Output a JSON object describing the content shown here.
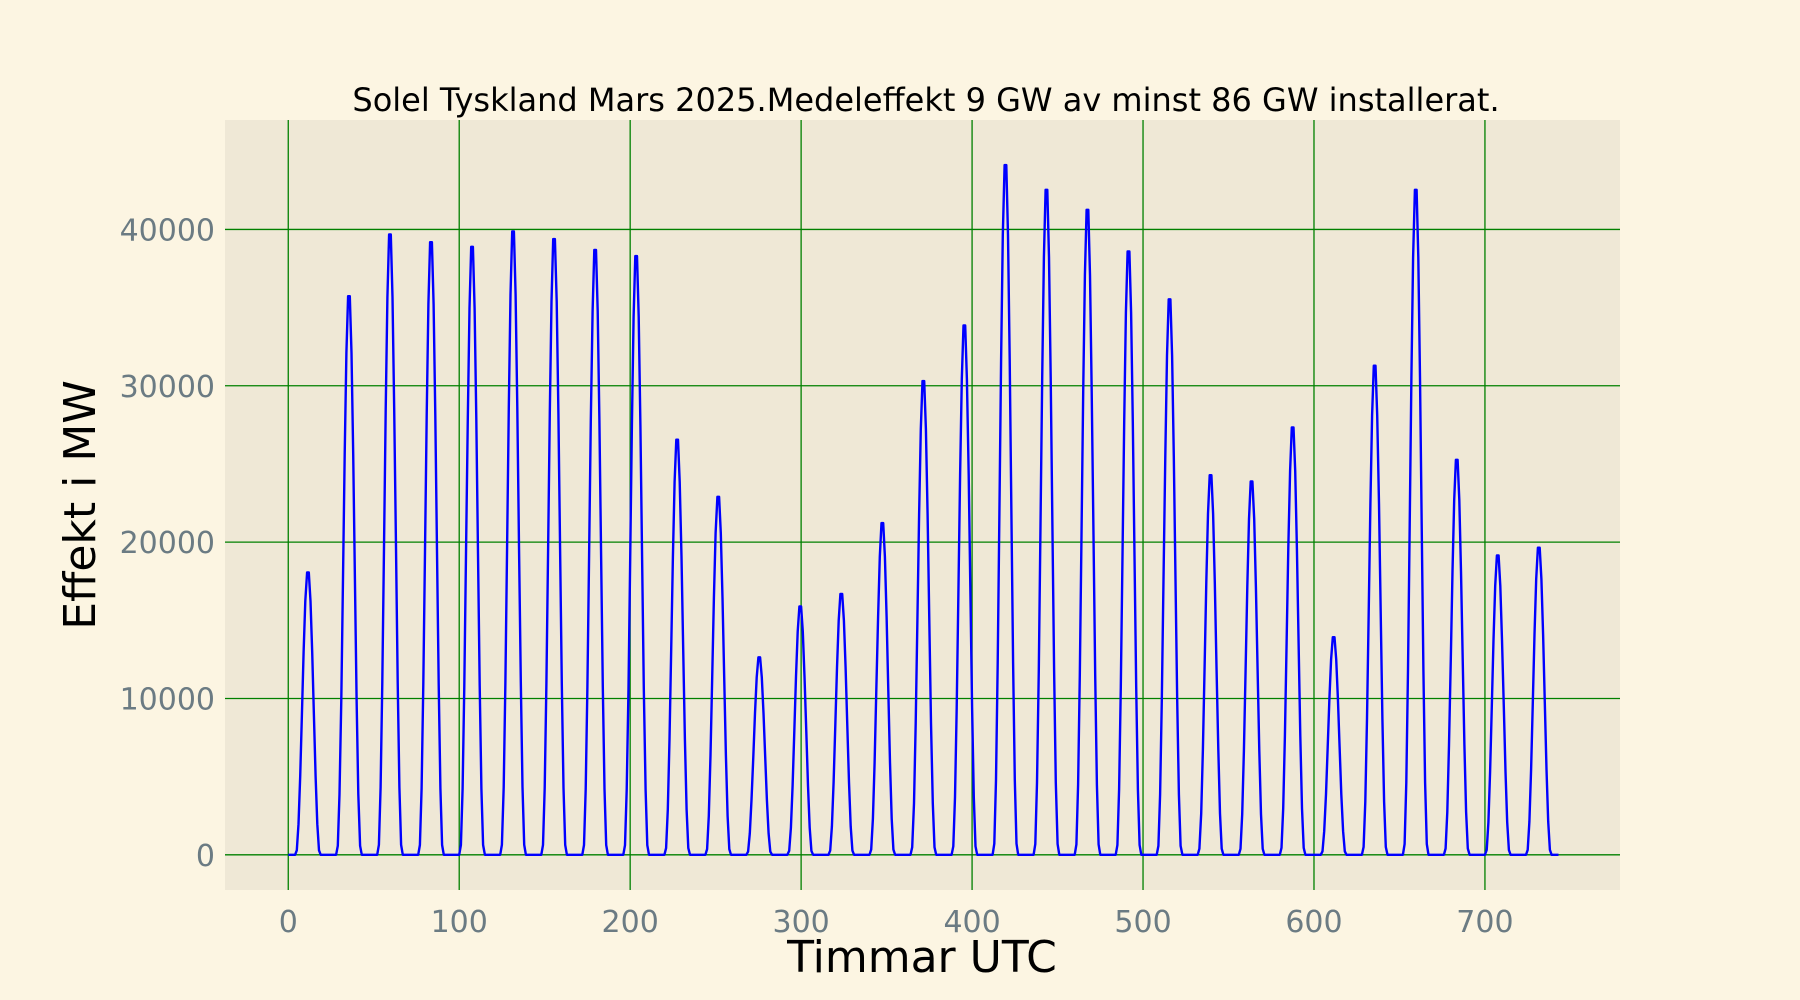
{
  "chart_data": {
    "type": "line",
    "title": "Solel Tyskland Mars 2025.Medeleffekt 9 GW av minst 86 GW installerat.",
    "xlabel": "Timmar UTC",
    "ylabel": "Effekt i MW",
    "xlim": [
      -37,
      779
    ],
    "ylim": [
      -2250,
      47000
    ],
    "xticks": [
      0,
      100,
      200,
      300,
      400,
      500,
      600,
      700
    ],
    "yticks": [
      0,
      10000,
      20000,
      30000,
      40000
    ],
    "grid": true,
    "colors": {
      "figure_background": "#fcf5e2",
      "plot_background": "#efe8d6",
      "grid": "#008000",
      "line": "#0000ff",
      "tick_labels": "#6b7b83"
    },
    "daily_peaks": [
      {
        "hour": 11.5,
        "value": 18300
      },
      {
        "hour": 35.5,
        "value": 36200
      },
      {
        "hour": 59.5,
        "value": 40200
      },
      {
        "hour": 83.5,
        "value": 39700
      },
      {
        "hour": 107.5,
        "value": 39400
      },
      {
        "hour": 131.5,
        "value": 40400
      },
      {
        "hour": 155.5,
        "value": 39900
      },
      {
        "hour": 179.5,
        "value": 39200
      },
      {
        "hour": 203.5,
        "value": 38800
      },
      {
        "hour": 227.5,
        "value": 26900
      },
      {
        "hour": 251.5,
        "value": 23200
      },
      {
        "hour": 275.5,
        "value": 12800
      },
      {
        "hour": 299.5,
        "value": 16100
      },
      {
        "hour": 323.5,
        "value": 16900
      },
      {
        "hour": 347.5,
        "value": 21500
      },
      {
        "hour": 371.5,
        "value": 30700
      },
      {
        "hour": 395.5,
        "value": 34300
      },
      {
        "hour": 419.5,
        "value": 44700
      },
      {
        "hour": 443.5,
        "value": 43100
      },
      {
        "hour": 467.5,
        "value": 41800
      },
      {
        "hour": 491.5,
        "value": 39100
      },
      {
        "hour": 515.5,
        "value": 36000
      },
      {
        "hour": 539.5,
        "value": 24600
      },
      {
        "hour": 563.5,
        "value": 24200
      },
      {
        "hour": 587.5,
        "value": 27700
      },
      {
        "hour": 611.5,
        "value": 14100
      },
      {
        "hour": 635.5,
        "value": 31700
      },
      {
        "hour": 659.5,
        "value": 43100
      },
      {
        "hour": 683.5,
        "value": 25600
      },
      {
        "hour": 707.5,
        "value": 19400
      },
      {
        "hour": 731.5,
        "value": 19900
      }
    ],
    "x_range": [
      0,
      743
    ]
  }
}
